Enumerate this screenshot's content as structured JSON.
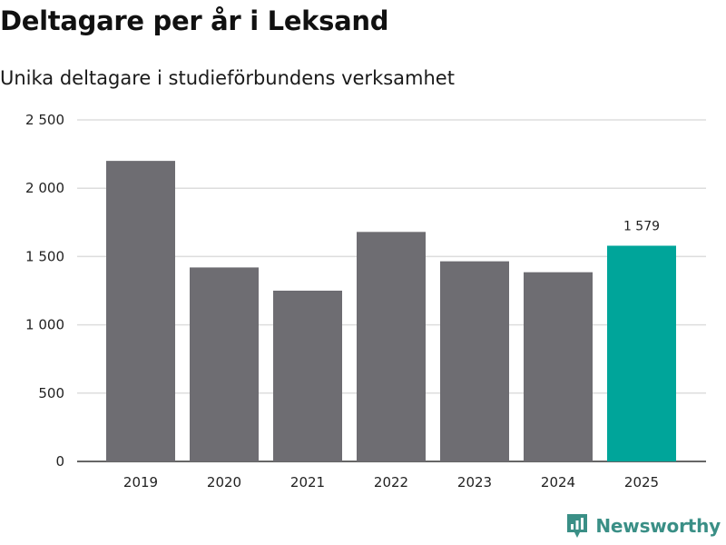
{
  "title": "Deltagare per år i Leksand",
  "subtitle": "Unika deltagare i studieförbundens verksamhet",
  "brand": {
    "name": "Newsworthy",
    "icon": "newsworthy-logo-icon",
    "color": "#3a8f86"
  },
  "colors": {
    "bar": "#6e6d72",
    "highlight": "#00a59a",
    "grid": "#dddddd",
    "axis": "#333333"
  },
  "chart_data": {
    "type": "bar",
    "title": "Deltagare per år i Leksand",
    "subtitle": "Unika deltagare i studieförbundens verksamhet",
    "xlabel": "",
    "ylabel": "",
    "categories": [
      "2019",
      "2020",
      "2021",
      "2022",
      "2023",
      "2024",
      "2025"
    ],
    "values": [
      2200,
      1420,
      1250,
      1680,
      1465,
      1385,
      1579
    ],
    "highlight_index": 6,
    "highlight_label": "1 579",
    "ylim": [
      0,
      2500
    ],
    "yticks": [
      0,
      500,
      1000,
      1500,
      2000,
      2500
    ],
    "ytick_labels": [
      "0",
      "500",
      "1 000",
      "1 500",
      "2 000",
      "2 500"
    ],
    "grid": true
  }
}
